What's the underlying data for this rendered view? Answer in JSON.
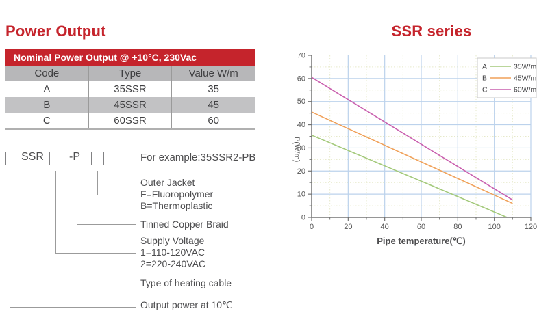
{
  "page": {
    "accent_red": "#c5242c",
    "background": "#ffffff"
  },
  "left": {
    "title": "Power Output",
    "table": {
      "header": "Nominal Power Output @ +10°C, 230Vac",
      "columns": [
        "Code",
        "Type",
        "Value W/m"
      ],
      "rows": [
        [
          "A",
          "35SSR",
          "35"
        ],
        [
          "B",
          "45SSR",
          "45"
        ],
        [
          "C",
          "60SSR",
          "60"
        ]
      ],
      "header_bg": "#c5242c",
      "column_header_bg": "#b7b7b9",
      "alt_row_bg": "#c2c2c4"
    },
    "part_number": {
      "ssr_label": "SSR",
      "p_label": "-P",
      "example": "For example:35SSR2-PB",
      "labels": {
        "outer_jacket": [
          "Outer Jacket",
          "F=Fluoropolymer",
          "B=Thermoplastic"
        ],
        "braid": "Tinned Copper Braid",
        "supply": [
          "Supply Voltage",
          "1=110-120VAC",
          "2=220-240VAC"
        ],
        "cable_type": "Type of heating cable",
        "output_power": "Output power at 10℃"
      }
    }
  },
  "right": {
    "title": "SSR series"
  },
  "chart_data": {
    "type": "line",
    "title": "SSR series",
    "xlabel": "Pipe temperature(℃)",
    "ylabel": "P(W/m)",
    "xlim": [
      0,
      120
    ],
    "ylim": [
      0,
      70
    ],
    "xticks": [
      0,
      20,
      40,
      60,
      80,
      100,
      120
    ],
    "yticks": [
      0,
      10,
      20,
      30,
      40,
      50,
      60,
      70
    ],
    "grid": {
      "major_color": "#bcd2ec",
      "minor_color": "#e6e9c9",
      "minor_dashed": true
    },
    "axis_color": "#737373",
    "legend_position": "top-right",
    "series": [
      {
        "code": "A",
        "name": "35W/m",
        "color": "#a3c97a",
        "points": [
          [
            0,
            35.5
          ],
          [
            107,
            0
          ]
        ]
      },
      {
        "code": "B",
        "name": "45W/m",
        "color": "#f0a058",
        "points": [
          [
            0,
            45.5
          ],
          [
            110,
            6
          ]
        ]
      },
      {
        "code": "C",
        "name": "60W/m",
        "color": "#c95fae",
        "points": [
          [
            0,
            60.5
          ],
          [
            110,
            7.5
          ]
        ]
      }
    ]
  }
}
